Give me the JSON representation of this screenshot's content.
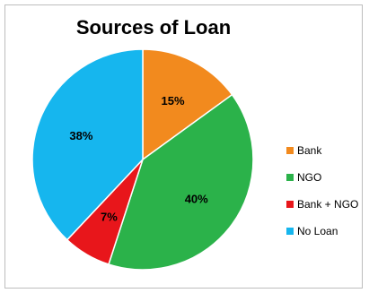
{
  "chart_data": {
    "type": "pie",
    "title": "Sources of Loan",
    "categories": [
      "Bank",
      "NGO",
      "Bank + NGO",
      "No Loan"
    ],
    "values": [
      15,
      40,
      7,
      38
    ],
    "labels": [
      "15%",
      "40%",
      "7%",
      "38%"
    ],
    "colors": [
      "#f28a1e",
      "#2bb24a",
      "#e8161b",
      "#16b6ee"
    ],
    "start_angle": "12 o'clock, clockwise",
    "legend_position": "right"
  }
}
